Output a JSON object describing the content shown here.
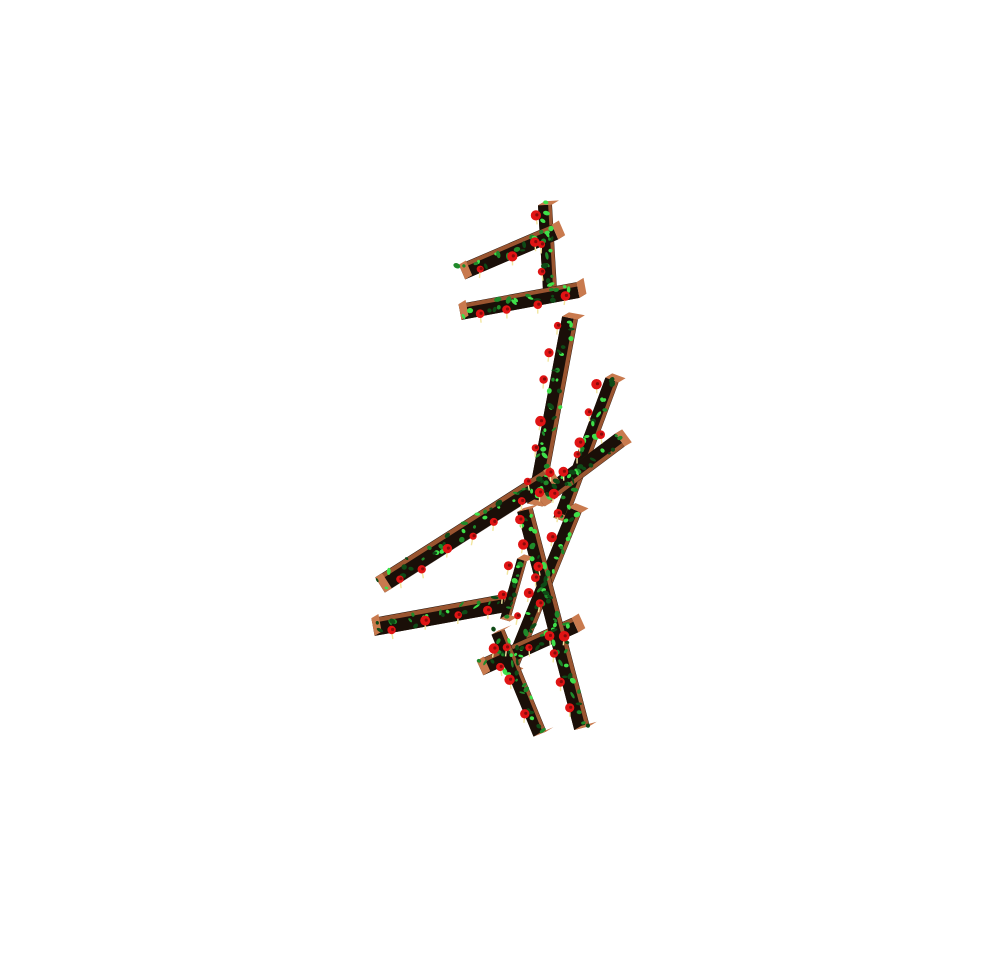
{
  "scene": {
    "subject": "rose-covered-trellis-sculpture",
    "colors": {
      "background": "#ffffff",
      "wood_light": "#c97a4e",
      "wood_mid": "#9a5530",
      "wood_dark": "#4a2a18",
      "wood_black": "#1a0f08",
      "leaf_bright": "#3fe04a",
      "leaf_mid": "#1f8a2a",
      "leaf_dark": "#0e4a16",
      "rose_red": "#e01414",
      "rose_dark": "#8a0a0a",
      "bud_yellow": "#f2e6a0"
    }
  }
}
